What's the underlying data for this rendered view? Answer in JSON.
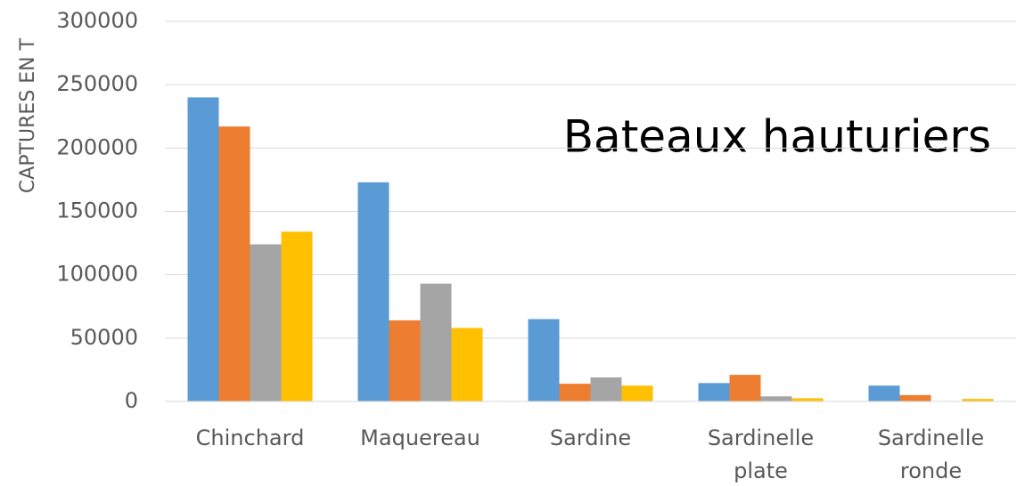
{
  "chart_data": {
    "type": "bar",
    "ylabel": "CAPTURES EN T",
    "annotation": "Bateaux hauturiers",
    "categories": [
      "Chinchard",
      "Maquereau",
      "Sardine",
      "Sardinelle plate",
      "Sardinelle ronde"
    ],
    "series": [
      {
        "color": "#5b9bd5",
        "values": [
          240000,
          173000,
          65000,
          14500,
          12500
        ]
      },
      {
        "color": "#ed7d31",
        "values": [
          217000,
          64000,
          14000,
          21000,
          5000
        ]
      },
      {
        "color": "#a5a5a5",
        "values": [
          124000,
          93000,
          19000,
          4000,
          0
        ]
      },
      {
        "color": "#ffc000",
        "values": [
          134000,
          58000,
          12500,
          2500,
          2000
        ]
      }
    ],
    "ylim": [
      0,
      300000
    ],
    "yticks": [
      0,
      50000,
      100000,
      150000,
      200000,
      250000,
      300000
    ],
    "grid": true
  }
}
